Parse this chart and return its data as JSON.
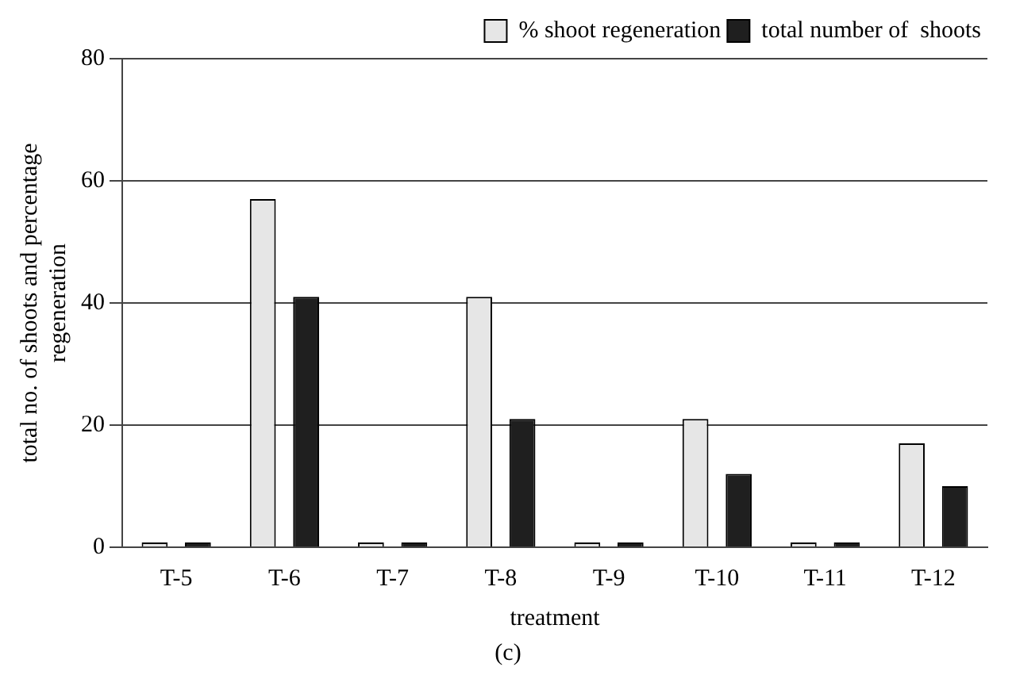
{
  "chart_data": {
    "type": "bar",
    "xlabel": "treatment",
    "ylabel": "total no. of shoots and percentage\nregeneration",
    "annotations": [
      "(c)"
    ],
    "categories": [
      "T-5",
      "T-6",
      "T-7",
      "T-8",
      "T-9",
      "T-10",
      "T-11",
      "T-12"
    ],
    "series": [
      {
        "name": "% shoot regeneration",
        "color": "#e6e6e6",
        "values": [
          0,
          57,
          0,
          41,
          0,
          21,
          0,
          17
        ]
      },
      {
        "name": "total number of  shoots",
        "color": "#1f1f1f",
        "values": [
          0,
          41,
          0,
          21,
          0,
          12,
          0,
          10
        ]
      }
    ],
    "ylim": [
      0,
      80
    ],
    "yticks": [
      0,
      20,
      40,
      60,
      80
    ],
    "grid": "y",
    "legend": "top right"
  }
}
